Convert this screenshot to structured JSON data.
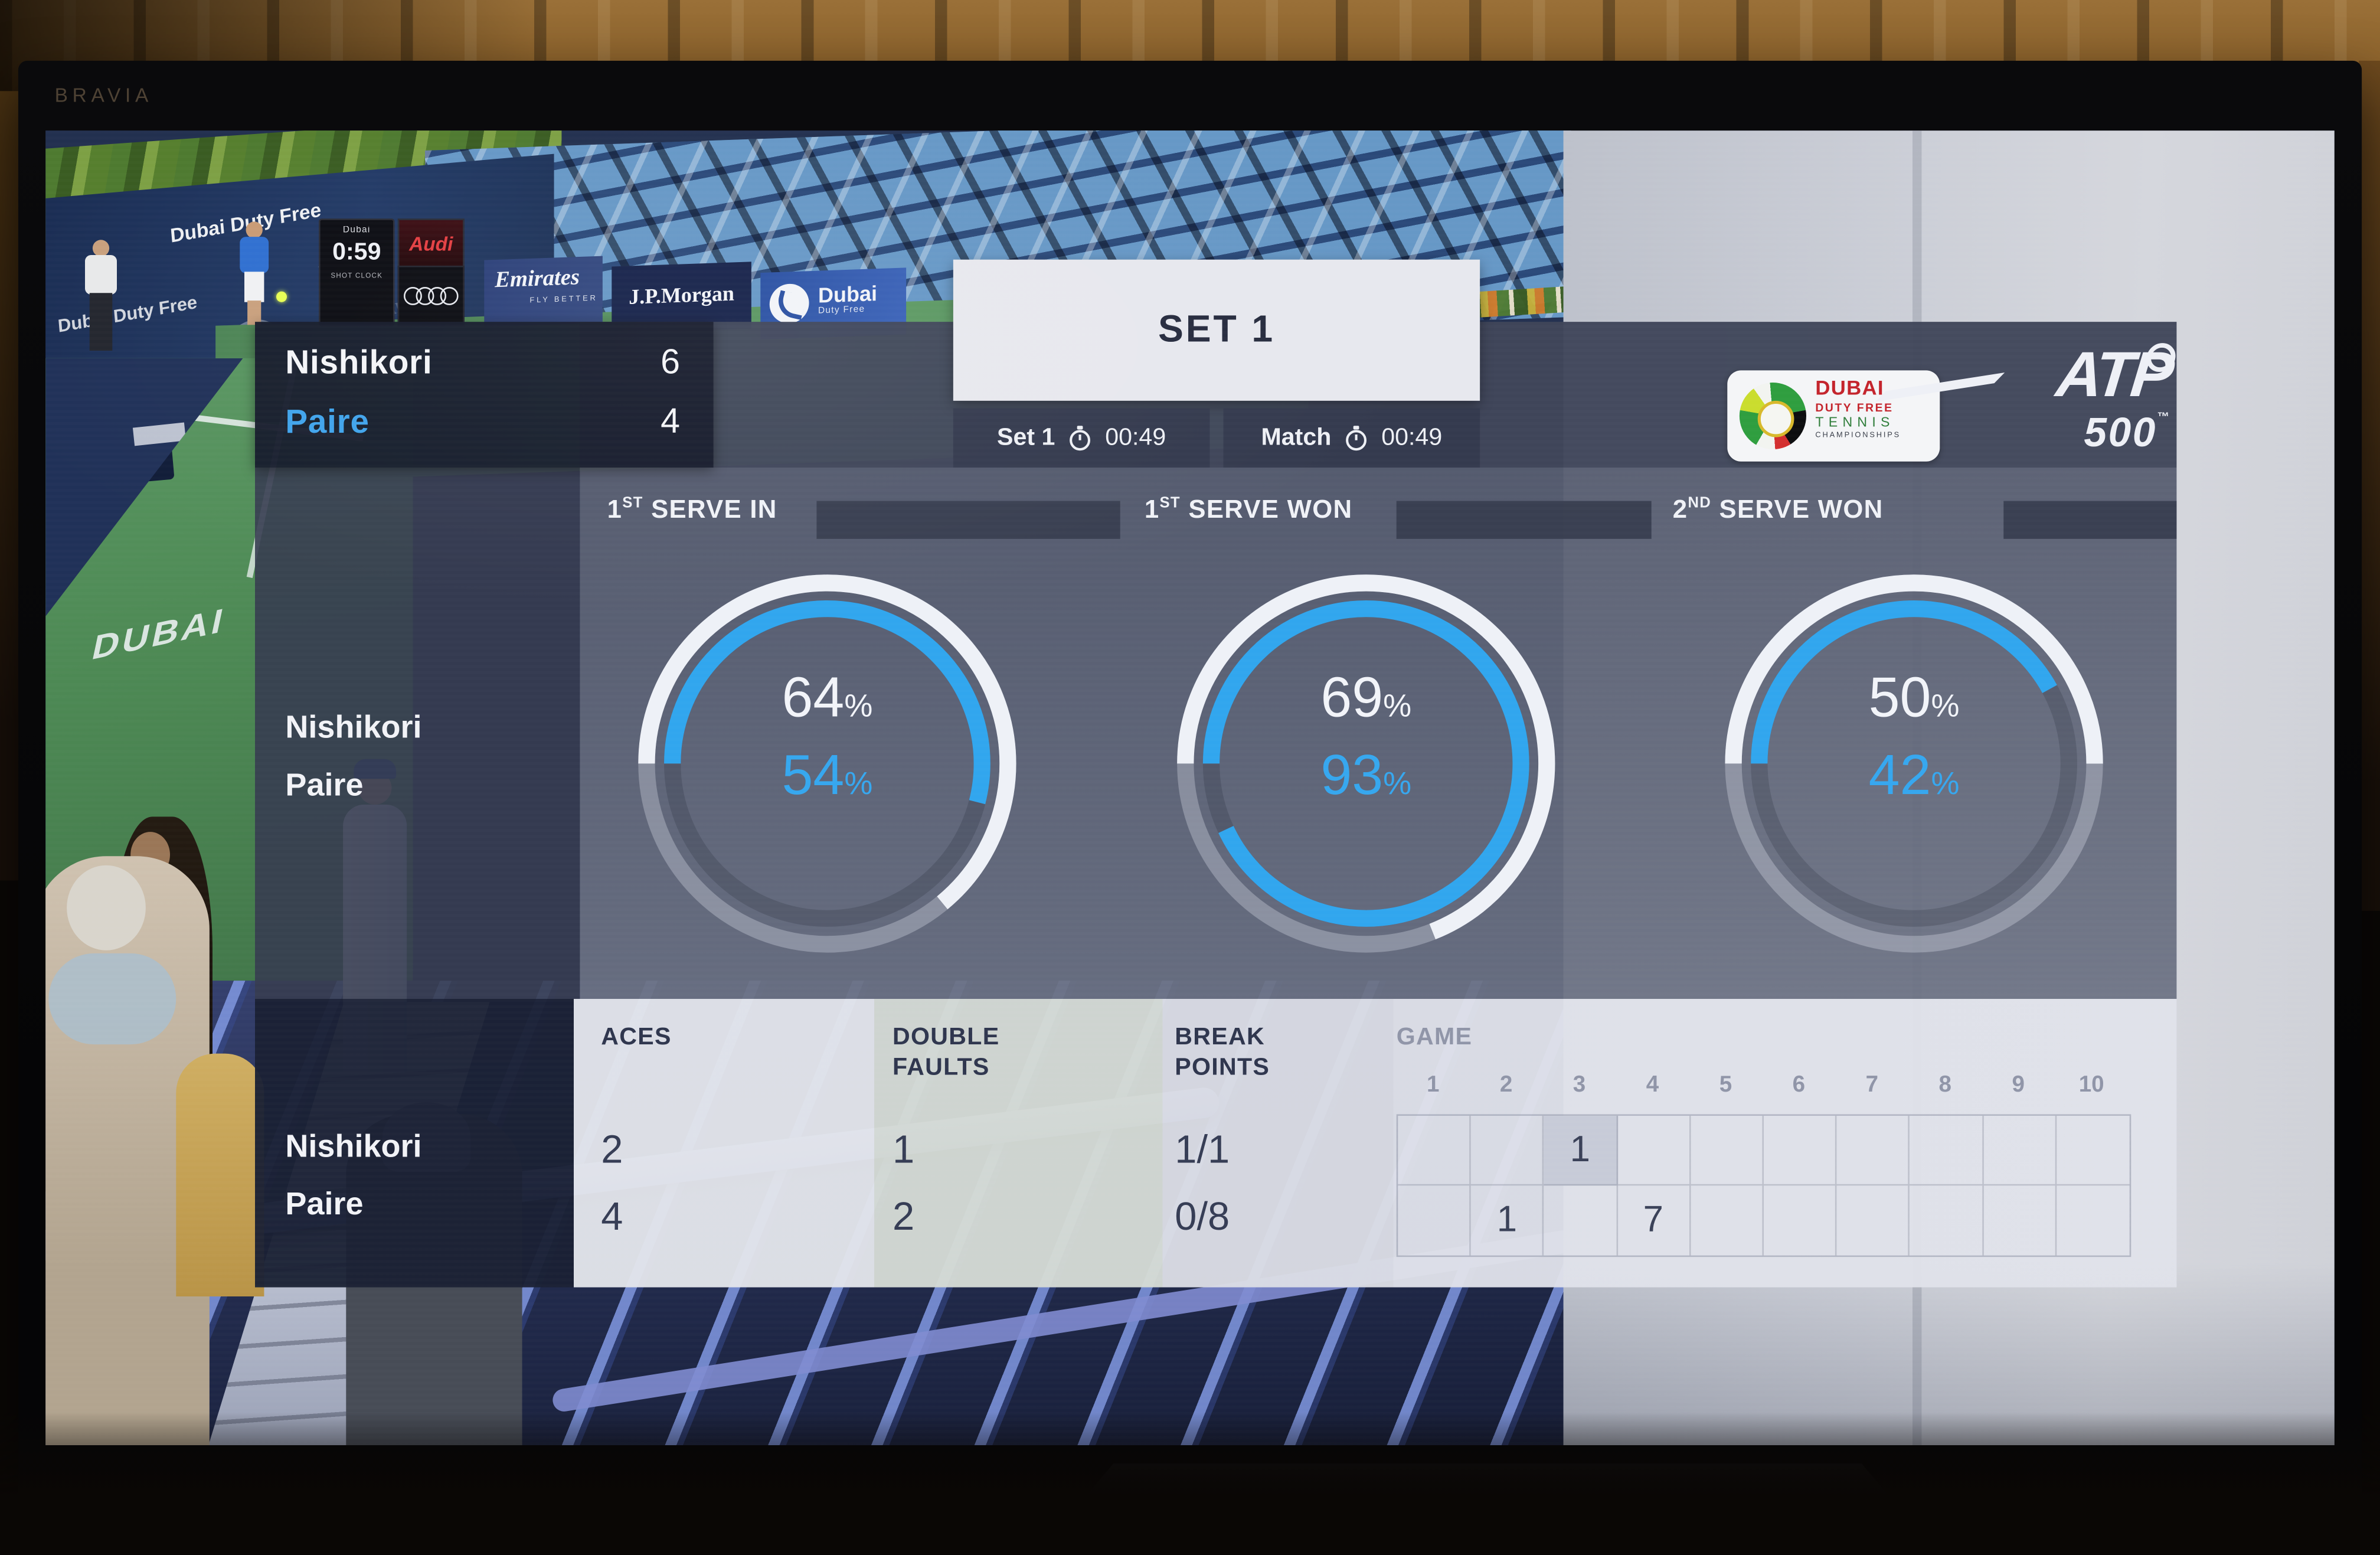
{
  "tv": {
    "brand": "BRAVIA"
  },
  "video": {
    "wall_text_1": "Dubai Duty Free",
    "wall_text_2": "Dubai Duty Free",
    "wall_watermark": "J.P.Morgan",
    "wall_atp": "ATP",
    "court_text": "DUBAI",
    "shot_clock": {
      "brand": "Dubai",
      "time": "0:59",
      "label": "SHOT CLOCK"
    },
    "audi": "Audi",
    "boards": {
      "emirates": "Emirates",
      "emirates_sub": "FLY BETTER",
      "jpmorgan": "J.P.Morgan",
      "dubai": "Dubai",
      "dubai_sub": "Duty Free"
    }
  },
  "scoreboard": {
    "set_title": "SET 1",
    "players": [
      {
        "name": "Nishikori",
        "sets": "6"
      },
      {
        "name": "Paire",
        "sets": "4"
      }
    ],
    "timers": [
      {
        "label": "Set 1",
        "time": "00:49"
      },
      {
        "label": "Match",
        "time": "00:49"
      }
    ]
  },
  "logos": {
    "dubai": {
      "line1": "DUBAI",
      "line2": "DUTY FREE",
      "line3": "TENNIS",
      "line4": "CHAMPIONSHIPS"
    },
    "atp": {
      "word": "ATP",
      "tier": "500",
      "tm": "™"
    }
  },
  "serve_stats": {
    "pct_symbol": "%",
    "headers": [
      {
        "num": "1",
        "sup": "ST",
        "label": "SERVE IN"
      },
      {
        "num": "1",
        "sup": "ST",
        "label": "SERVE WON"
      },
      {
        "num": "2",
        "sup": "ND",
        "label": "SERVE WON"
      }
    ],
    "gauges": [
      {
        "player1": 64,
        "player2": 54
      },
      {
        "player1": 69,
        "player2": 93
      },
      {
        "player1": 50,
        "player2": 42
      }
    ],
    "row_players": [
      "Nishikori",
      "Paire"
    ]
  },
  "match_stats": {
    "row_players": [
      "Nishikori",
      "Paire"
    ],
    "headers": {
      "aces": "ACES",
      "double_faults_1": "DOUBLE",
      "double_faults_2": "FAULTS",
      "break_points_1": "BREAK",
      "break_points_2": "POINTS",
      "game": "GAME"
    },
    "game_numbers": [
      "1",
      "2",
      "3",
      "4",
      "5",
      "6",
      "7",
      "8",
      "9",
      "10"
    ],
    "rows": [
      {
        "aces": "2",
        "double_faults": "1",
        "break_points": "1/1",
        "games": [
          "",
          "",
          "1",
          "",
          "",
          "",
          "",
          "",
          "",
          ""
        ]
      },
      {
        "aces": "4",
        "double_faults": "2",
        "break_points": "0/8",
        "games": [
          "",
          "1",
          "",
          "7",
          "",
          "",
          "",
          "",
          "",
          ""
        ]
      }
    ],
    "highlighted_cell": {
      "row": 0,
      "col": 2
    }
  },
  "colors": {
    "accent_blue": "#38a6ee",
    "arc_white": "#eef1f7"
  }
}
